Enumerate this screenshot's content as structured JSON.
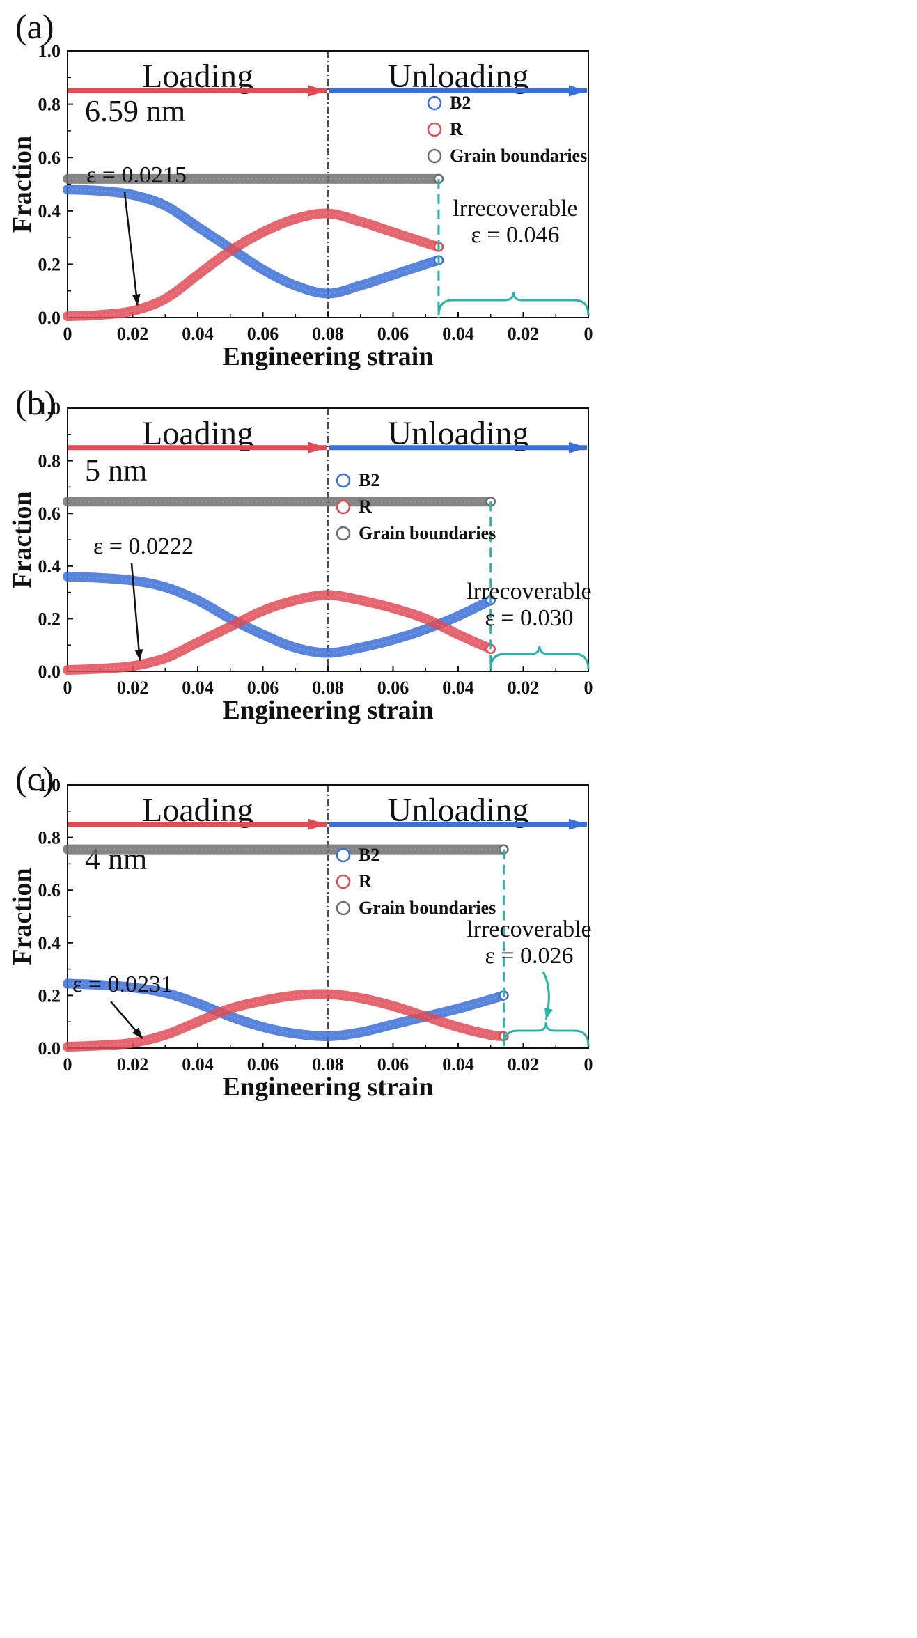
{
  "chart_data": [
    {
      "type": "line",
      "panel_label": "(a)",
      "grain_size_label": "6.59 nm",
      "title": "",
      "xlabel": "Engineering strain",
      "ylabel": "Fraction",
      "x_tick_labels": [
        "0",
        "0.02",
        "0.04",
        "0.06",
        "0.08",
        "0.06",
        "0.04",
        "0.02",
        "0"
      ],
      "y_tick_labels": [
        "0.0",
        "0.2",
        "0.4",
        "0.6",
        "0.8",
        "1.0"
      ],
      "ylim": [
        0,
        1.0
      ],
      "phase_labels": [
        "Loading",
        "Unloading"
      ],
      "turning_strain": 0.08,
      "unload_end_strain": 0.046,
      "legend": [
        "B2",
        "R",
        "Grain boundaries"
      ],
      "colors": {
        "B2": "#3b6fd8",
        "R": "#e04b55",
        "Grain boundaries": "#6e6e6e",
        "Loading": "#e04b55",
        "Unloading": "#3b6fd8",
        "Irrecoverable": "#29b5a8"
      },
      "loading_strain": [
        0,
        0.01,
        0.02,
        0.03,
        0.04,
        0.05,
        0.06,
        0.07,
        0.08
      ],
      "unloading_strain": [
        0.08,
        0.07,
        0.06,
        0.05,
        0.046
      ],
      "series": [
        {
          "name": "B2",
          "loading": [
            0.48,
            0.475,
            0.46,
            0.42,
            0.34,
            0.26,
            0.18,
            0.12,
            0.09
          ],
          "unloading": [
            0.09,
            0.12,
            0.16,
            0.2,
            0.215
          ]
        },
        {
          "name": "R",
          "loading": [
            0.005,
            0.01,
            0.025,
            0.07,
            0.16,
            0.25,
            0.32,
            0.37,
            0.39
          ],
          "unloading": [
            0.39,
            0.36,
            0.32,
            0.28,
            0.265
          ]
        },
        {
          "name": "Grain boundaries",
          "loading": [
            0.52,
            0.52,
            0.52,
            0.52,
            0.52,
            0.52,
            0.52,
            0.52,
            0.52
          ],
          "unloading": [
            0.52,
            0.52,
            0.52,
            0.52,
            0.52
          ]
        }
      ],
      "onset_annotation": "ε = 0.0215",
      "onset_strain": 0.0215,
      "onset_value": 0.03,
      "irrecoverable_label": "lrrecoverable",
      "irrecoverable_value": "ε = 0.046"
    },
    {
      "type": "line",
      "panel_label": "(b)",
      "grain_size_label": "5 nm",
      "title": "",
      "xlabel": "Engineering strain",
      "ylabel": "Fraction",
      "x_tick_labels": [
        "0",
        "0.02",
        "0.04",
        "0.06",
        "0.08",
        "0.06",
        "0.04",
        "0.02",
        "0"
      ],
      "y_tick_labels": [
        "0.0",
        "0.2",
        "0.4",
        "0.6",
        "0.8",
        "1.0"
      ],
      "ylim": [
        0,
        1.0
      ],
      "phase_labels": [
        "Loading",
        "Unloading"
      ],
      "turning_strain": 0.08,
      "unload_end_strain": 0.03,
      "legend": [
        "B2",
        "R",
        "Grain boundaries"
      ],
      "colors": {
        "B2": "#3b6fd8",
        "R": "#e04b55",
        "Grain boundaries": "#6e6e6e",
        "Loading": "#e04b55",
        "Unloading": "#3b6fd8",
        "Irrecoverable": "#29b5a8"
      },
      "loading_strain": [
        0,
        0.01,
        0.02,
        0.03,
        0.04,
        0.05,
        0.06,
        0.07,
        0.08
      ],
      "unloading_strain": [
        0.08,
        0.07,
        0.06,
        0.05,
        0.04,
        0.03
      ],
      "series": [
        {
          "name": "B2",
          "loading": [
            0.36,
            0.355,
            0.345,
            0.32,
            0.27,
            0.2,
            0.14,
            0.09,
            0.07
          ],
          "unloading": [
            0.07,
            0.09,
            0.12,
            0.16,
            0.21,
            0.27
          ]
        },
        {
          "name": "R",
          "loading": [
            0.005,
            0.01,
            0.02,
            0.05,
            0.11,
            0.17,
            0.23,
            0.27,
            0.29
          ],
          "unloading": [
            0.29,
            0.27,
            0.24,
            0.2,
            0.14,
            0.085
          ]
        },
        {
          "name": "Grain boundaries",
          "loading": [
            0.645,
            0.645,
            0.645,
            0.645,
            0.645,
            0.645,
            0.645,
            0.645,
            0.645
          ],
          "unloading": [
            0.645,
            0.645,
            0.645,
            0.645,
            0.645,
            0.645
          ]
        }
      ],
      "onset_annotation": "ε = 0.0222",
      "onset_strain": 0.0222,
      "onset_value": 0.025,
      "irrecoverable_label": "lrrecoverable",
      "irrecoverable_value": "ε = 0.030"
    },
    {
      "type": "line",
      "panel_label": "(c)",
      "grain_size_label": "4 nm",
      "title": "",
      "xlabel": "Engineering strain",
      "ylabel": "Fraction",
      "x_tick_labels": [
        "0",
        "0.02",
        "0.04",
        "0.06",
        "0.08",
        "0.06",
        "0.04",
        "0.02",
        "0"
      ],
      "y_tick_labels": [
        "0.0",
        "0.2",
        "0.4",
        "0.6",
        "0.8",
        "1.0"
      ],
      "ylim": [
        0,
        1.0
      ],
      "phase_labels": [
        "Loading",
        "Unloading"
      ],
      "turning_strain": 0.08,
      "unload_end_strain": 0.026,
      "legend": [
        "B2",
        "R",
        "Grain boundaries"
      ],
      "colors": {
        "B2": "#3b6fd8",
        "R": "#e04b55",
        "Grain boundaries": "#6e6e6e",
        "Loading": "#e04b55",
        "Unloading": "#3b6fd8",
        "Irrecoverable": "#29b5a8"
      },
      "loading_strain": [
        0,
        0.01,
        0.02,
        0.03,
        0.04,
        0.05,
        0.06,
        0.07,
        0.08
      ],
      "unloading_strain": [
        0.08,
        0.07,
        0.06,
        0.05,
        0.04,
        0.03,
        0.026
      ],
      "series": [
        {
          "name": "B2",
          "loading": [
            0.245,
            0.24,
            0.23,
            0.21,
            0.17,
            0.12,
            0.08,
            0.055,
            0.045
          ],
          "unloading": [
            0.045,
            0.06,
            0.09,
            0.12,
            0.15,
            0.185,
            0.2
          ]
        },
        {
          "name": "R",
          "loading": [
            0.005,
            0.01,
            0.02,
            0.05,
            0.1,
            0.15,
            0.18,
            0.2,
            0.205
          ],
          "unloading": [
            0.205,
            0.19,
            0.16,
            0.12,
            0.08,
            0.05,
            0.045
          ]
        },
        {
          "name": "Grain boundaries",
          "loading": [
            0.755,
            0.755,
            0.755,
            0.755,
            0.755,
            0.755,
            0.755,
            0.755,
            0.755
          ],
          "unloading": [
            0.755,
            0.755,
            0.755,
            0.755,
            0.755,
            0.755,
            0.755
          ]
        }
      ],
      "onset_annotation": "ε = 0.0231",
      "onset_strain": 0.0231,
      "onset_value": 0.02,
      "irrecoverable_label": "lrrecoverable",
      "irrecoverable_value": "ε = 0.026"
    }
  ]
}
